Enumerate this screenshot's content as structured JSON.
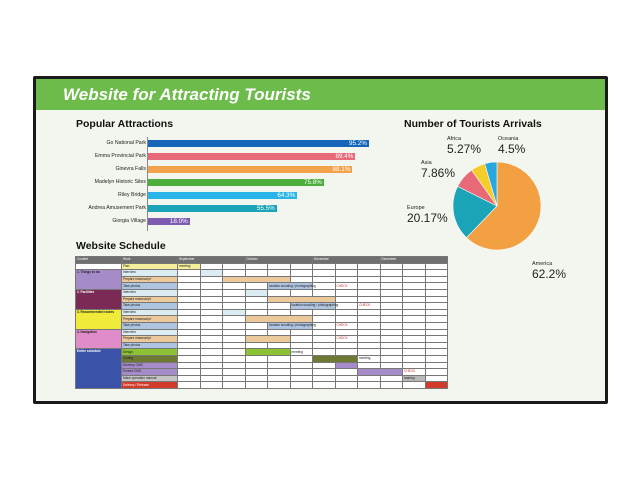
{
  "title": "Website for Attracting Tourists",
  "colors": {
    "header": "#6cbb4b",
    "screen": "#f3f6ee"
  },
  "chart_data": [
    {
      "type": "bar",
      "title": "Popular Attractions",
      "orientation": "horizontal",
      "categories": [
        "Go National Park",
        "Emma Provincial Park",
        "Ginevra Falls",
        "Madelyn Historic Sites",
        "Riley Bridge",
        "Andrea Amusement Park",
        "Giorgia Village"
      ],
      "values": [
        95.2,
        89.4,
        88.1,
        75.8,
        64.3,
        55.5,
        18.0
      ],
      "labels": [
        "95.2%",
        "89.4%",
        "88.1%",
        "75.8%",
        "64.3%",
        "55.5%",
        "18.0%"
      ],
      "colors": [
        "#1565b8",
        "#e86a78",
        "#f2a24a",
        "#4caf3c",
        "#29b5e8",
        "#1ba3b8",
        "#7c5bb0"
      ]
    },
    {
      "type": "pie",
      "title": "Number of Tourists Arrivals",
      "slices": [
        {
          "name": "America",
          "value": 62.2,
          "label": "62.2%",
          "color": "#f2a041"
        },
        {
          "name": "Europe",
          "value": 20.17,
          "label": "20.17%",
          "color": "#1ba3b8"
        },
        {
          "name": "Asia",
          "value": 7.86,
          "label": "7.86%",
          "color": "#e86a78"
        },
        {
          "name": "Africa",
          "value": 5.27,
          "label": "5.27%",
          "color": "#f5cc2a"
        },
        {
          "name": "Oceania",
          "value": 4.5,
          "label": "4.5%",
          "color": "#29a8e0"
        }
      ]
    }
  ],
  "schedule": {
    "title": "Website Schedule",
    "headers": {
      "content": "Content",
      "work": "Work",
      "months": [
        "September",
        "October",
        "November",
        "December"
      ]
    },
    "groups": [
      {
        "label": "",
        "color": "#ffffff",
        "rows": [
          {
            "work": "Plan",
            "color": "#f5ef9c",
            "cells": [
              {
                "col": 0,
                "span": 1,
                "text": "meeting",
                "color": "#f5ef9c"
              }
            ]
          }
        ]
      },
      {
        "label": "1. Things to do",
        "color": "#a58cc8",
        "rows": [
          {
            "work": "Interview",
            "color": "#dcecf3",
            "cells": [
              {
                "col": 1,
                "span": 1,
                "text": "",
                "color": "#dcecf3"
              }
            ]
          },
          {
            "work": "Prepare manuscript",
            "color": "#ecc99a",
            "cells": [
              {
                "col": 2,
                "span": 3,
                "text": "",
                "color": "#ecc99a"
              }
            ]
          },
          {
            "work": "Take photos",
            "color": "#aec4e0",
            "cells": [
              {
                "col": 4,
                "span": 2,
                "text": "location scouting / photographing",
                "color": "#aec4e0"
              },
              {
                "col": 7,
                "span": 1,
                "text": "CHECK",
                "color": "",
                "tc": "#c0302a"
              }
            ]
          }
        ]
      },
      {
        "label": "2. Facilities",
        "color": "#7a2a55",
        "light": true,
        "rows": [
          {
            "work": "Interview",
            "color": "#dcecf3",
            "cells": [
              {
                "col": 3,
                "span": 1,
                "text": "",
                "color": "#dcecf3"
              }
            ]
          },
          {
            "work": "Prepare manuscript",
            "color": "#ecc99a",
            "cells": [
              {
                "col": 4,
                "span": 3,
                "text": "",
                "color": "#ecc99a"
              }
            ]
          },
          {
            "work": "Take photos",
            "color": "#aec4e0",
            "cells": [
              {
                "col": 5,
                "span": 2,
                "text": "location scouting / photographing",
                "color": "#aec4e0"
              },
              {
                "col": 8,
                "span": 1,
                "text": "CHECK",
                "color": "",
                "tc": "#c0302a"
              }
            ]
          }
        ]
      },
      {
        "label": "3. Recommended routes",
        "color": "#f0ea3a",
        "rows": [
          {
            "work": "Interview",
            "color": "#dcecf3",
            "cells": [
              {
                "col": 2,
                "span": 1,
                "text": "",
                "color": "#dcecf3"
              }
            ]
          },
          {
            "work": "Prepare manuscript",
            "color": "#ecc99a",
            "cells": [
              {
                "col": 3,
                "span": 3,
                "text": "",
                "color": "#ecc99a"
              }
            ]
          },
          {
            "work": "Take photos",
            "color": "#aec4e0",
            "cells": [
              {
                "col": 4,
                "span": 2,
                "text": "location scouting / photographing",
                "color": "#aec4e0"
              },
              {
                "col": 7,
                "span": 1,
                "text": "CHECK",
                "color": "",
                "tc": "#c0302a"
              }
            ]
          }
        ]
      },
      {
        "label": "4. Navigation",
        "color": "#e08cc8",
        "rows": [
          {
            "work": "Interview",
            "color": "#dcecf3",
            "cells": []
          },
          {
            "work": "Prepare manuscript",
            "color": "#ecc99a",
            "cells": [
              {
                "col": 3,
                "span": 2,
                "text": "",
                "color": "#ecc99a"
              },
              {
                "col": 7,
                "span": 1,
                "text": "CHECK",
                "color": "",
                "tc": "#c0302a"
              }
            ]
          },
          {
            "work": "Take photos",
            "color": "#aec4e0",
            "cells": []
          }
        ]
      },
      {
        "label": "Entire schedule",
        "color": "#3a52a8",
        "light": true,
        "rows": [
          {
            "work": "Design",
            "color": "#8cc234",
            "cells": [
              {
                "col": 3,
                "span": 2,
                "text": "",
                "color": "#8cc234"
              },
              {
                "col": 5,
                "span": 1,
                "text": "meeting",
                "color": ""
              }
            ]
          },
          {
            "work": "Coding",
            "color": "#6e7a32",
            "cells": [
              {
                "col": 6,
                "span": 2,
                "text": "",
                "color": "#6e7a32"
              },
              {
                "col": 8,
                "span": 1,
                "text": "meeting",
                "color": ""
              }
            ]
          },
          {
            "work": "Develop CMS",
            "color": "#a58cc8",
            "cells": [
              {
                "col": 7,
                "span": 1,
                "text": "",
                "color": "#a58cc8"
              }
            ]
          },
          {
            "work": "Embed CMS",
            "color": "#a58cc8",
            "cells": [
              {
                "col": 8,
                "span": 2,
                "text": "",
                "color": "#a58cc8"
              },
              {
                "col": 10,
                "span": 1,
                "text": "CHECK",
                "color": "",
                "tc": "#c0302a"
              }
            ]
          },
          {
            "work": "Make operation manual",
            "color": "#c4c4c4",
            "cells": [
              {
                "col": 10,
                "span": 1,
                "text": "training",
                "color": "#b8b8b8"
              }
            ]
          },
          {
            "work": "Delivery / Release",
            "color": "#d23a2a",
            "light": true,
            "cells": [
              {
                "col": 11,
                "span": 1,
                "text": "",
                "color": "#d23a2a"
              }
            ]
          }
        ]
      }
    ]
  }
}
